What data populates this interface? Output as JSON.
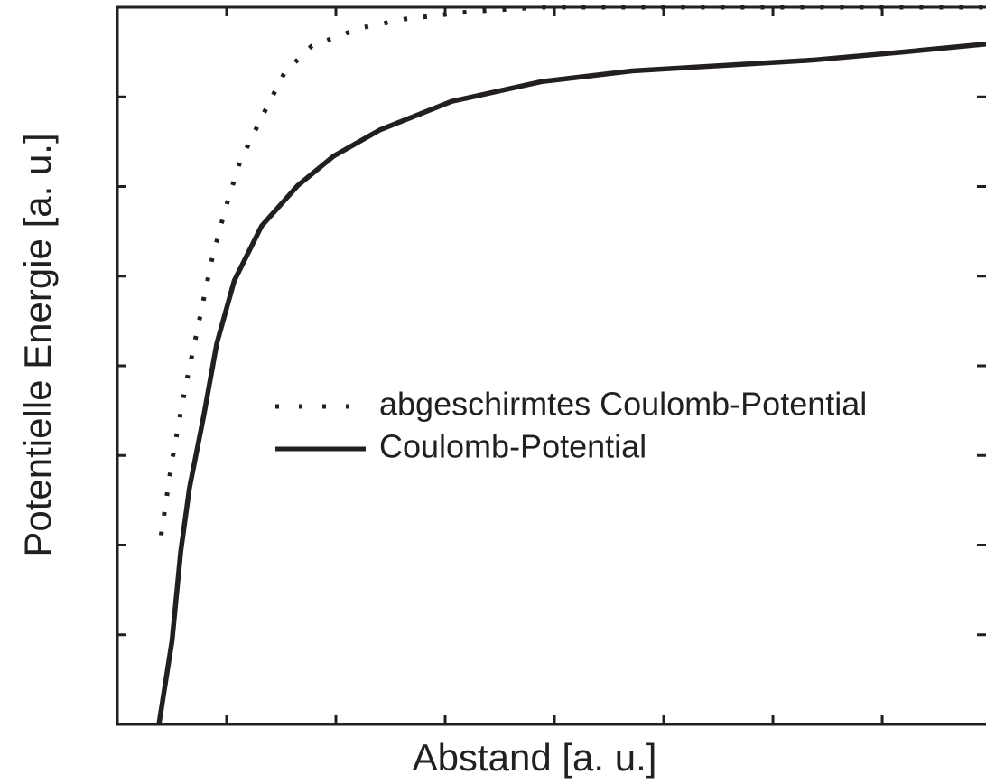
{
  "chart_data": {
    "type": "line",
    "x_label": "Abstand [a. u.]",
    "y_label": "Potentielle Energie [a. u.]",
    "xlim": [
      0,
      7.95
    ],
    "ylim": [
      0,
      8
    ],
    "xticks": [
      0,
      1,
      2,
      3,
      4,
      5,
      6,
      7
    ],
    "yticks": [
      0,
      1,
      2,
      3,
      4,
      5,
      6,
      7,
      8
    ],
    "legend": "center",
    "series": [
      {
        "name": "abgeschirmtes Coulomb-Potential",
        "color": "#231f20",
        "style": "dotted",
        "x": [
          0.4,
          0.5,
          0.62,
          0.74,
          0.86,
          0.99,
          1.12,
          1.32,
          1.53,
          1.78,
          2.23,
          2.64,
          3.22,
          3.88,
          5.0,
          7.95
        ],
        "values": [
          2.11,
          2.94,
          3.75,
          4.45,
          5.16,
          5.76,
          6.27,
          6.77,
          7.27,
          7.57,
          7.77,
          7.87,
          7.95,
          8.0,
          8.0,
          8.0
        ]
      },
      {
        "name": "Coulomb-Potential",
        "color": "#231f20",
        "style": "solid",
        "x": [
          0.38,
          0.5,
          0.58,
          0.66,
          0.79,
          0.91,
          1.07,
          1.32,
          1.65,
          1.98,
          2.4,
          3.06,
          3.88,
          4.71,
          5.54,
          6.36,
          7.19,
          7.95
        ],
        "values": [
          0,
          0.93,
          1.93,
          2.64,
          3.44,
          4.25,
          4.95,
          5.56,
          6.01,
          6.34,
          6.63,
          6.95,
          7.17,
          7.29,
          7.35,
          7.41,
          7.5,
          7.59
        ]
      }
    ]
  }
}
